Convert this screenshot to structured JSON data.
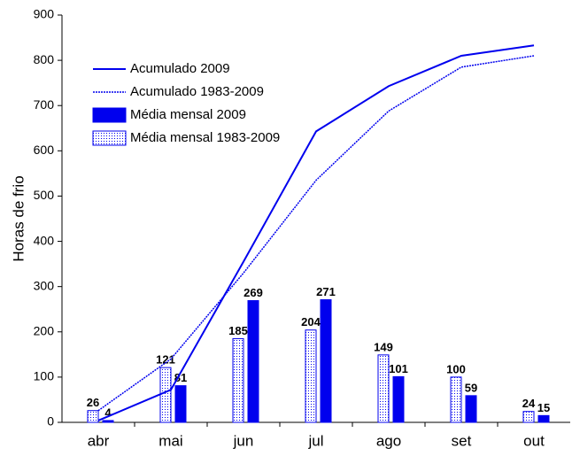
{
  "chart_data": {
    "type": "bar-line",
    "y_label": "Horas de frio",
    "categories": [
      "abr",
      "mai",
      "jun",
      "jul",
      "ago",
      "set",
      "out"
    ],
    "series": [
      {
        "name": "Acumulado 2009",
        "kind": "line",
        "style": "solid",
        "color": "#0000ee",
        "values": [
          4,
          72,
          355,
          643,
          743,
          810,
          833
        ]
      },
      {
        "name": "Acumulado 1983-2009",
        "kind": "line",
        "style": "dotted",
        "color": "#0000ee",
        "values": [
          26,
          140,
          330,
          535,
          688,
          785,
          810
        ]
      },
      {
        "name": "Média mensal 2009",
        "kind": "bar",
        "style": "solid",
        "color": "#0000ee",
        "values": [
          4,
          81,
          269,
          271,
          101,
          59,
          15
        ]
      },
      {
        "name": "Média mensal 1983-2009",
        "kind": "bar",
        "style": "dotted",
        "color": "#0000ee",
        "values": [
          26,
          121,
          185,
          204,
          149,
          100,
          24
        ]
      }
    ],
    "ylim": [
      0,
      900
    ],
    "yticks": [
      0,
      100,
      200,
      300,
      400,
      500,
      600,
      700,
      800,
      900
    ],
    "grid": false
  }
}
